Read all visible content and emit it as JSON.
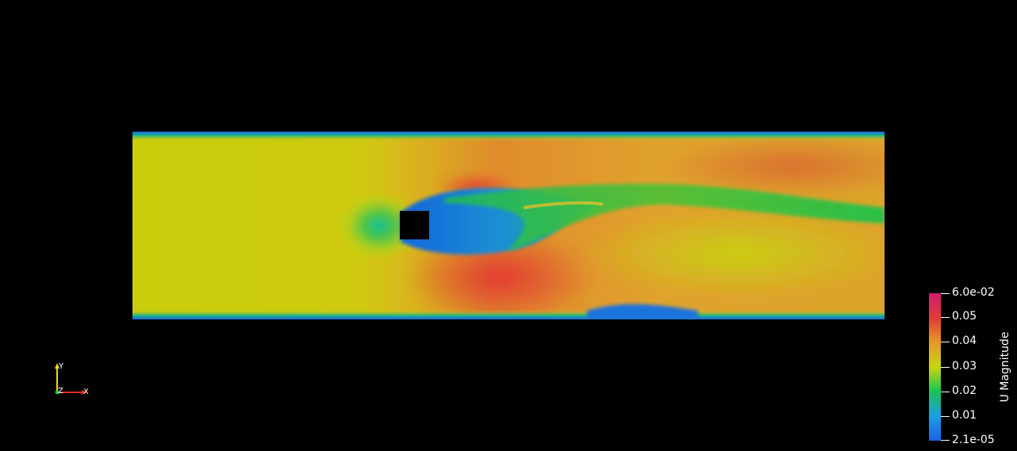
{
  "visualization": {
    "scalar_field": "U Magnitude",
    "colormap_stops": [
      "#1e5fe6",
      "#1e9ee0",
      "#17c35a",
      "#c9d60a",
      "#e39a2b",
      "#e13a38",
      "#d51a6e"
    ],
    "background": "#000000",
    "obstacle_color": "#000000"
  },
  "legend": {
    "title": "U Magnitude",
    "labels": [
      "6.0e-02",
      "0.05",
      "0.04",
      "0.03",
      "0.02",
      "0.01",
      "2.1e-05"
    ]
  },
  "axes_widget": {
    "x_label": "X",
    "y_label": "Y",
    "z_label": "Z",
    "x_color": "#e0302a",
    "y_color": "#e8e21c",
    "z_color": "#28c13a"
  }
}
